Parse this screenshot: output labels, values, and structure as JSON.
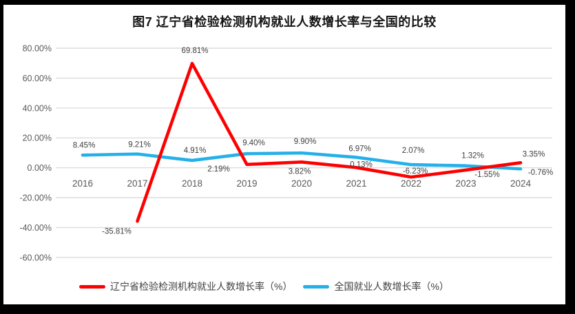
{
  "frame": {
    "border_color": "#000000",
    "background": "#ffffff"
  },
  "chart_data": {
    "type": "line",
    "title": "图7  辽宁省检验检测机构就业人数增长率与全国的比较",
    "categories": [
      "2016",
      "2017",
      "2018",
      "2019",
      "2020",
      "2021",
      "2022",
      "2023",
      "2024"
    ],
    "series": [
      {
        "name": "辽宁省检验检测机构就业人数增长率（%）",
        "color": "#ff0000",
        "values": [
          null,
          -35.81,
          69.81,
          2.19,
          3.82,
          0.13,
          -6.23,
          -1.55,
          3.35
        ],
        "labels": [
          null,
          "-35.81%",
          "69.81%",
          "2.19%",
          "3.82%",
          "0.13%",
          "-6.23%",
          "-1.55%",
          "3.35%"
        ],
        "label_offsets": [
          null,
          [
            -30,
            14
          ],
          [
            4,
            -19
          ],
          [
            -41,
            6
          ],
          [
            -3,
            13
          ],
          [
            7,
            -5
          ],
          [
            6,
            -9
          ],
          [
            31,
            6
          ],
          [
            19,
            -13
          ]
        ]
      },
      {
        "name": "全国就业人数增长率（%）",
        "color": "#25b0e8",
        "values": [
          8.45,
          9.21,
          4.91,
          9.4,
          9.9,
          6.97,
          2.07,
          1.32,
          -0.76
        ],
        "labels": [
          "8.45%",
          "9.21%",
          "4.91%",
          "9.40%",
          "9.90%",
          "6.97%",
          "2.07%",
          "1.32%",
          "-0.76%"
        ],
        "label_offsets": [
          [
            2,
            -15
          ],
          [
            3,
            -14
          ],
          [
            4,
            -15
          ],
          [
            10,
            -16
          ],
          [
            5,
            -17
          ],
          [
            5,
            -13
          ],
          [
            3,
            -21
          ],
          [
            10,
            -15
          ],
          [
            29,
            5
          ]
        ]
      }
    ],
    "y_axis": {
      "min": -60,
      "max": 80,
      "ticks": [
        {
          "label": "80.00%",
          "value": 80
        },
        {
          "label": "60.00%",
          "value": 60
        },
        {
          "label": "40.00%",
          "value": 40
        },
        {
          "label": "20.00%",
          "value": 20
        },
        {
          "label": "0.00%",
          "value": 0
        },
        {
          "label": "-20.00%",
          "value": -20
        },
        {
          "label": "-40.00%",
          "value": -40
        },
        {
          "label": "-60.00%",
          "value": -60
        }
      ]
    },
    "grid": true,
    "gridline_color": "#dcdcdc",
    "axis_label_color": "#595959",
    "data_label_color": "#3f3f3f",
    "legend_position": "bottom",
    "draw_order_note": "red series drawn on top of blue"
  }
}
